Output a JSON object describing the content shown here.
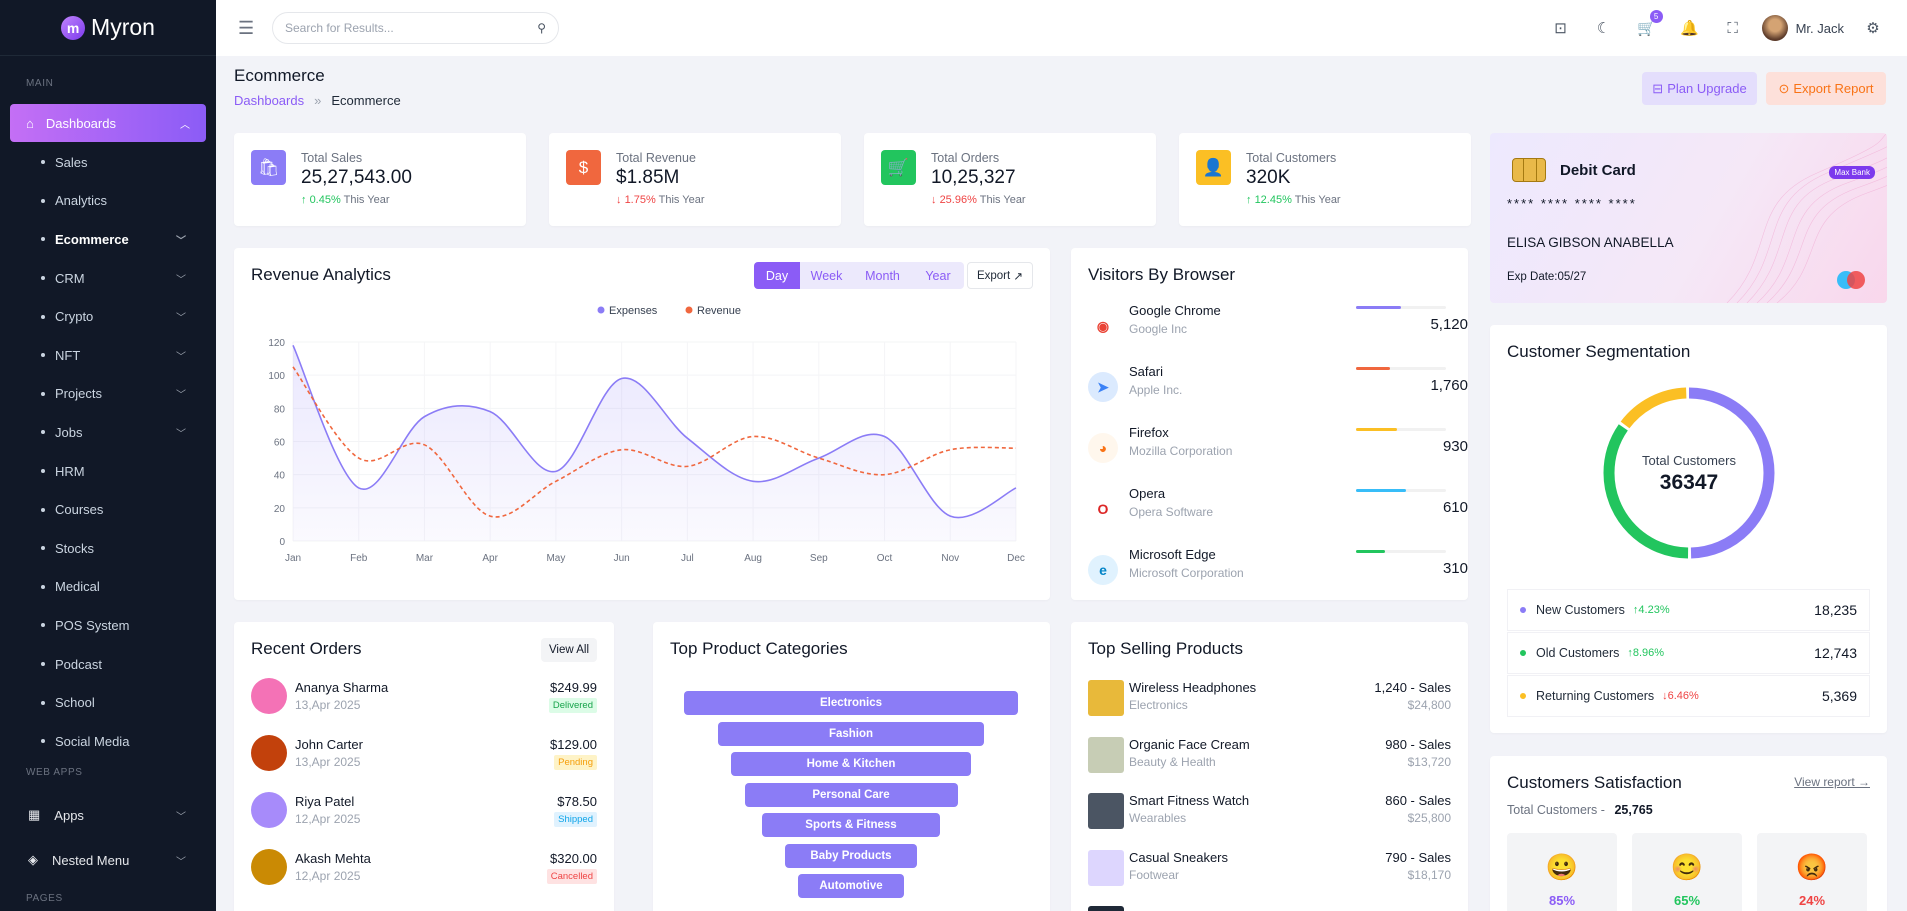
{
  "brand": {
    "name": "Myron",
    "logo_letter": "m"
  },
  "sidebar": {
    "section_main": "MAIN",
    "dashboards": "Dashboards",
    "items": [
      {
        "label": "Sales",
        "chev": false
      },
      {
        "label": "Analytics",
        "chev": false
      },
      {
        "label": "Ecommerce",
        "chev": true,
        "active": true
      },
      {
        "label": "CRM",
        "chev": true
      },
      {
        "label": "Crypto",
        "chev": true
      },
      {
        "label": "NFT",
        "chev": true
      },
      {
        "label": "Projects",
        "chev": true
      },
      {
        "label": "Jobs",
        "chev": true
      },
      {
        "label": "HRM",
        "chev": false
      },
      {
        "label": "Courses",
        "chev": false
      },
      {
        "label": "Stocks",
        "chev": false
      },
      {
        "label": "Medical",
        "chev": false
      },
      {
        "label": "POS System",
        "chev": false
      },
      {
        "label": "Podcast",
        "chev": false
      },
      {
        "label": "School",
        "chev": false
      },
      {
        "label": "Social Media",
        "chev": false
      }
    ],
    "section_webapps": "WEB APPS",
    "apps": "Apps",
    "nested_menu": "Nested Menu",
    "section_pages": "PAGES"
  },
  "header": {
    "search_placeholder": "Search for Results...",
    "cart_badge": "5",
    "user_name": "Mr. Jack"
  },
  "page": {
    "title": "Ecommerce",
    "breadcrumb_link": "Dashboards",
    "breadcrumb_sep": "»",
    "breadcrumb_current": "Ecommerce",
    "plan_upgrade": "Plan Upgrade",
    "export_report": "Export Report"
  },
  "stats": [
    {
      "label": "Total Sales",
      "value": "25,27,543.00",
      "arrow": "↑",
      "pct": "0.45%",
      "suffix": "This Year",
      "color": "#8b7cf6",
      "trend": "up"
    },
    {
      "label": "Total Revenue",
      "value": "$1.85M",
      "arrow": "↓",
      "pct": "1.75%",
      "suffix": "This Year",
      "color": "#f0673e",
      "trend": "down"
    },
    {
      "label": "Total Orders",
      "value": "10,25,327",
      "arrow": "↓",
      "pct": "25.96%",
      "suffix": "This Year",
      "color": "#22c55e",
      "trend": "down"
    },
    {
      "label": "Total Customers",
      "value": "320K",
      "arrow": "↑",
      "pct": "12.45%",
      "suffix": "This Year",
      "color": "#fbbf24",
      "trend": "up"
    }
  ],
  "debit_card": {
    "title": "Debit Card",
    "tag": "Max Bank",
    "number": "**** **** **** ****",
    "holder": "ELISA GIBSON ANABELLA",
    "expiry": "Exp Date:05/27"
  },
  "revenue": {
    "title": "Revenue Analytics",
    "tabs": [
      "Day",
      "Week",
      "Month",
      "Year"
    ],
    "export": "Export",
    "chart_data": {
      "type": "line",
      "categories": [
        "Jan",
        "Feb",
        "Mar",
        "Apr",
        "May",
        "Jun",
        "Jul",
        "Aug",
        "Sep",
        "Oct",
        "Nov",
        "Dec"
      ],
      "ylim": [
        0,
        120
      ],
      "yticks": [
        0,
        20,
        40,
        60,
        80,
        100,
        120
      ],
      "series": [
        {
          "name": "Expenses",
          "color": "#8b7cf6",
          "style": "solid",
          "values": [
            118,
            32,
            75,
            78,
            42,
            98,
            62,
            36,
            50,
            63,
            15,
            32
          ]
        },
        {
          "name": "Revenue",
          "color": "#f0673e",
          "style": "dashed",
          "values": [
            105,
            50,
            58,
            15,
            36,
            55,
            45,
            63,
            50,
            40,
            55,
            56
          ]
        }
      ]
    }
  },
  "browsers": {
    "title": "Visitors By Browser",
    "items": [
      {
        "name": "Google Chrome",
        "company": "Google Inc",
        "value": "5,120",
        "fill": 0.5,
        "color": "#8b7cf6"
      },
      {
        "name": "Safari",
        "company": "Apple Inc.",
        "value": "1,760",
        "fill": 0.38,
        "color": "#f0673e"
      },
      {
        "name": "Firefox",
        "company": "Mozilla Corporation",
        "value": "930",
        "fill": 0.45,
        "color": "#fbbf24"
      },
      {
        "name": "Opera",
        "company": "Opera Software",
        "value": "610",
        "fill": 0.55,
        "color": "#38bdf8"
      },
      {
        "name": "Microsoft Edge",
        "company": "Microsoft Corporation",
        "value": "310",
        "fill": 0.32,
        "color": "#22c55e"
      }
    ]
  },
  "segmentation": {
    "title": "Customer Segmentation",
    "center_label": "Total Customers",
    "center_value": "36347",
    "items": [
      {
        "label": "New Customers",
        "arrow": "↑",
        "pct": "4.23%",
        "value": "18,235",
        "color": "#8b7cf6",
        "trend": "up"
      },
      {
        "label": "Old Customers",
        "arrow": "↑",
        "pct": "8.96%",
        "value": "12,743",
        "color": "#22c55e",
        "trend": "up"
      },
      {
        "label": "Returning Customers",
        "arrow": "↓",
        "pct": "6.46%",
        "value": "5,369",
        "color": "#fbbf24",
        "trend": "down"
      }
    ],
    "chart_data": {
      "type": "pie",
      "categories": [
        "New Customers",
        "Old Customers",
        "Returning Customers"
      ],
      "values": [
        18235,
        12743,
        5369
      ]
    }
  },
  "orders": {
    "title": "Recent Orders",
    "view_all": "View All",
    "items": [
      {
        "name": "Ananya Sharma",
        "date": "13,Apr 2025",
        "price": "$249.99",
        "status": "Delivered",
        "status_color": "#16a34a",
        "status_bg": "#dcfce7",
        "avatar": "#f472b6"
      },
      {
        "name": "John Carter",
        "date": "13,Apr 2025",
        "price": "$129.00",
        "status": "Pending",
        "status_color": "#f59e0b",
        "status_bg": "#fef3c7",
        "avatar": "#c2410c"
      },
      {
        "name": "Riya Patel",
        "date": "12,Apr 2025",
        "price": "$78.50",
        "status": "Shipped",
        "status_color": "#0ea5e9",
        "status_bg": "#e0f2fe",
        "avatar": "#a78bfa"
      },
      {
        "name": "Akash Mehta",
        "date": "12,Apr 2025",
        "price": "$320.00",
        "status": "Cancelled",
        "status_color": "#ef4444",
        "status_bg": "#fee2e2",
        "avatar": "#ca8a04"
      }
    ]
  },
  "categories": {
    "title": "Top Product Categories",
    "items": [
      "Electronics",
      "Fashion",
      "Home & Kitchen",
      "Personal Care",
      "Sports & Fitness",
      "Baby Products",
      "Automotive"
    ]
  },
  "top_selling": {
    "title": "Top Selling Products",
    "items": [
      {
        "name": "Wireless Headphones",
        "category": "Electronics",
        "sales": "1,240 - Sales",
        "revenue": "$24,800",
        "img": "#e8b93a"
      },
      {
        "name": "Organic Face Cream",
        "category": "Beauty & Health",
        "sales": "980 - Sales",
        "revenue": "$13,720",
        "img": "#c7cdb5"
      },
      {
        "name": "Smart Fitness Watch",
        "category": "Wearables",
        "sales": "860 - Sales",
        "revenue": "$25,800",
        "img": "#4b5563"
      },
      {
        "name": "Casual Sneakers",
        "category": "Footwear",
        "sales": "790 - Sales",
        "revenue": "$18,170",
        "img": "#ddd6fe"
      }
    ]
  },
  "satisfaction": {
    "title": "Customers Satisfaction",
    "view_report": "View report →",
    "total_label": "Total Customers -",
    "total_value": "25,765",
    "items": [
      {
        "emoji": "😀",
        "pct": "85%",
        "color": "#8b5cf6"
      },
      {
        "emoji": "😊",
        "pct": "65%",
        "color": "#22c55e"
      },
      {
        "emoji": "😡",
        "pct": "24%",
        "color": "#ef4444"
      }
    ]
  }
}
